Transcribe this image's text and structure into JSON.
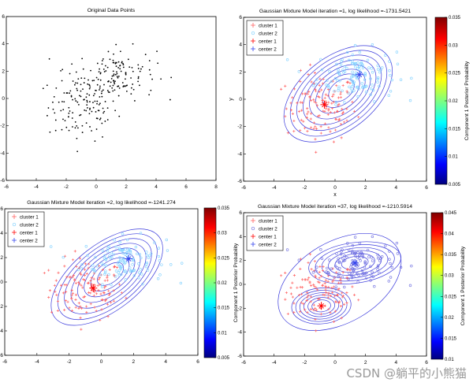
{
  "chart_data": [
    {
      "type": "scatter",
      "title": "Original Data Points",
      "xticks": [
        "-6",
        "-4",
        "-2",
        "0",
        "2",
        "4",
        "6",
        "8"
      ],
      "yticks": [
        "6",
        "4",
        "2",
        "0",
        "-2",
        "-4",
        "-6"
      ],
      "xlim": [
        -6,
        8
      ],
      "ylim": [
        -6,
        6
      ],
      "series": [
        {
          "marker": "dot",
          "color": "#000000",
          "n_points": 260,
          "cluster_means": [
            [
              -0.9,
              -0.6
            ],
            [
              1.4,
              1.8
            ]
          ]
        }
      ]
    },
    {
      "type": "scatter",
      "title": "Gaussian Mixture Model iteration =1, log likelihood =-1731.5421",
      "xlabel": "x",
      "ylabel": "y",
      "xticks": [
        "-6",
        "-4",
        "-2",
        "0",
        "2",
        "4",
        "6"
      ],
      "yticks": [
        "6",
        "4",
        "2",
        "0",
        "-2",
        "-4",
        "-6"
      ],
      "xlim": [
        -6,
        6
      ],
      "ylim": [
        -6,
        6
      ],
      "legend": [
        "cluster 1",
        "cluster 2",
        "center 1",
        "center 2"
      ],
      "centers": [
        [
          -0.7,
          -0.4
        ],
        [
          1.6,
          1.8
        ]
      ],
      "contour_shape": "single-broad",
      "colorbar": {
        "label": "Component 1 Posterior Probability",
        "ticks": [
          "0.035",
          "0.03",
          "0.025",
          "0.02",
          "0.015",
          "0.01",
          "0.005"
        ],
        "range": [
          0.005,
          0.035
        ]
      }
    },
    {
      "type": "scatter",
      "title": "Gaussian Mixture Model iteration =2, log likelihood =-1241.274",
      "xticks": [
        "-6",
        "-4",
        "-2",
        "0",
        "2",
        "4",
        "6"
      ],
      "yticks": [
        "6",
        "4",
        "2",
        "0",
        "-2",
        "-4",
        "-6"
      ],
      "xlim": [
        -6,
        6
      ],
      "ylim": [
        -6,
        6
      ],
      "legend": [
        "cluster 1",
        "cluster 2",
        "center 1",
        "center 2"
      ],
      "centers": [
        [
          -0.5,
          -0.5
        ],
        [
          1.7,
          1.9
        ]
      ],
      "contour_shape": "single-broad",
      "colorbar": {
        "label": "Component 1 Posterior Probability",
        "ticks": [
          "0.035",
          "0.03",
          "0.025",
          "0.02",
          "0.015",
          "0.01",
          "0.005"
        ],
        "range": [
          0.005,
          0.035
        ]
      }
    },
    {
      "type": "scatter",
      "title": "Gaussian Mixture Model iteration =37, log likelihood =-1210.5914",
      "xticks": [
        "-6",
        "-4",
        "-2",
        "0",
        "2",
        "4",
        "6"
      ],
      "yticks": [
        "6",
        "4",
        "2",
        "0",
        "-2",
        "-4",
        "-6"
      ],
      "xlim": [
        -6,
        6
      ],
      "ylim": [
        -6,
        6
      ],
      "legend": [
        "cluster 1",
        "cluster 2",
        "center 1",
        "center 2"
      ],
      "centers": [
        [
          -0.9,
          -1.8
        ],
        [
          1.3,
          1.8
        ]
      ],
      "contour_shape": "two-component",
      "colorbar": {
        "label": "Component 1 Posterior Probability",
        "ticks": [
          "0.045",
          "0.04",
          "0.035",
          "0.03",
          "0.025",
          "0.02",
          "0.015",
          "0.01"
        ],
        "range": [
          0.01,
          0.045
        ]
      }
    }
  ],
  "watermark": "CSDN @躺平的小熊猫",
  "colors": {
    "cluster1": "#ff6060",
    "cluster2": "#7fd0ff",
    "center1": "#ff0000",
    "center2": "#3344ee",
    "contour": "#3b3bdc",
    "axis": "#000000"
  }
}
